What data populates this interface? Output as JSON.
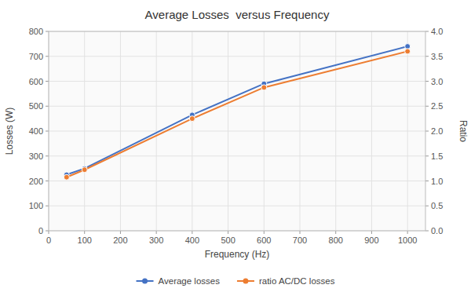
{
  "chart_data": {
    "type": "line",
    "title": "Average Losses  versus Frequency",
    "xlabel": "Frequency (Hz)",
    "ylabel": "Losses (W)",
    "y2label": "Ratio",
    "x": [
      50,
      100,
      400,
      600,
      1000
    ],
    "series": [
      {
        "name": "Average losses",
        "color": "#4472C4",
        "marker": "circle",
        "values": [
          225,
          250,
          465,
          590,
          740
        ]
      },
      {
        "name": "ratio AC/DC losses",
        "color": "#ED7D31",
        "marker": "circle",
        "axis": "y2",
        "values": [
          1.075,
          1.225,
          2.25,
          2.875,
          3.6
        ]
      }
    ],
    "xlim": [
      0,
      1050
    ],
    "xticks": [
      0,
      100,
      200,
      300,
      400,
      500,
      600,
      700,
      800,
      900,
      1000
    ],
    "ylim": [
      0,
      800
    ],
    "yticks": [
      0,
      100,
      200,
      300,
      400,
      500,
      600,
      700,
      800
    ],
    "y2lim": [
      0,
      4
    ],
    "y2ticks": [
      {
        "value": 0,
        "label": "0.0"
      },
      0.5,
      {
        "value": 1.0,
        "label": "1.0"
      },
      1.5,
      {
        "value": 2.0,
        "label": "2.0"
      },
      2.5,
      {
        "value": 3.0,
        "label": "3.0"
      },
      3.5,
      {
        "value": 4.0,
        "label": "4.0"
      }
    ],
    "grid": true,
    "legend": "bottom"
  }
}
